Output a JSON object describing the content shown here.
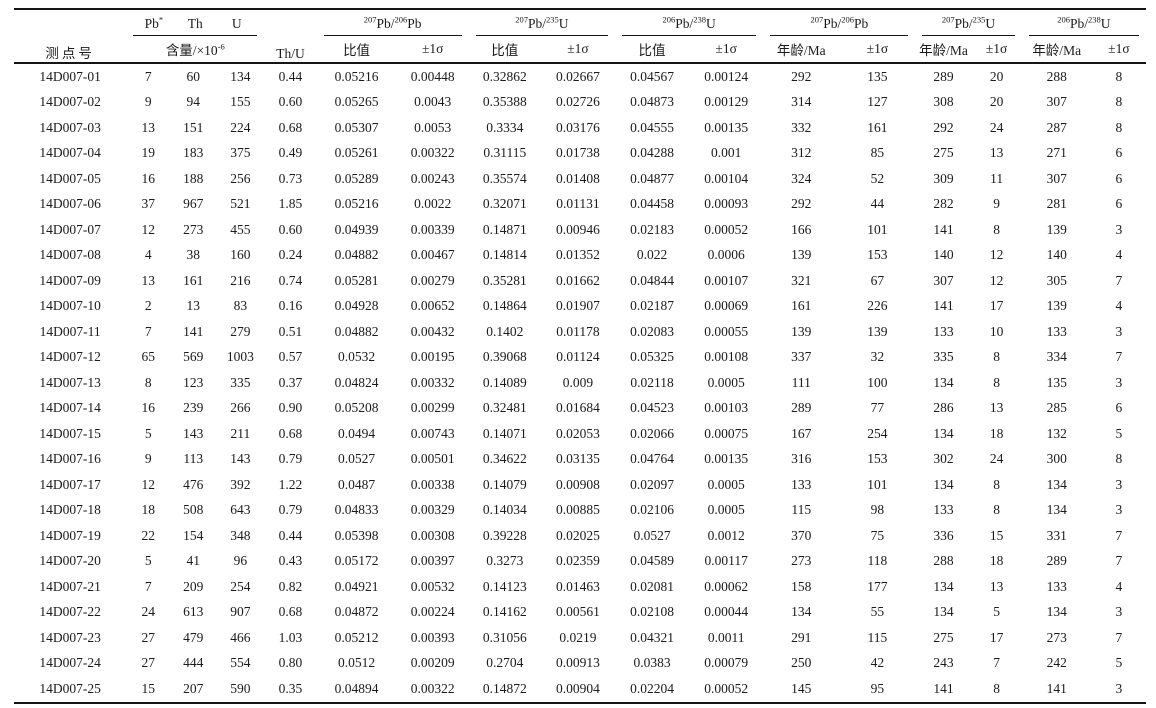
{
  "header": {
    "spot": "测点号",
    "th_u": "Th/U",
    "content": {
      "cols": [
        {
          "base": "Pb",
          "sup": "*"
        },
        {
          "base": "Th"
        },
        {
          "base": "U"
        }
      ],
      "sub": {
        "base": "含量/×10",
        "sup": "-6"
      }
    },
    "groups": [
      {
        "sup1": "207",
        "base1": "Pb/",
        "sup2": "206",
        "base2": "Pb",
        "sub1": "比值",
        "sub2": "±1σ"
      },
      {
        "sup1": "207",
        "base1": "Pb/",
        "sup2": "235",
        "base2": "U",
        "sub1": "比值",
        "sub2": "±1σ"
      },
      {
        "sup1": "206",
        "base1": "Pb/",
        "sup2": "238",
        "base2": "U",
        "sub1": "比值",
        "sub2": "±1σ"
      },
      {
        "sup1": "207",
        "base1": "Pb/",
        "sup2": "206",
        "base2": "Pb",
        "sub1": "年龄/Ma",
        "sub2": "±1σ"
      },
      {
        "sup1": "207",
        "base1": "Pb/",
        "sup2": "235",
        "base2": "U",
        "sub1": "年龄/Ma",
        "sub2": "±1σ"
      },
      {
        "sup1": "206",
        "base1": "Pb/",
        "sup2": "238",
        "base2": "U",
        "sub1": "年龄/Ma",
        "sub2": "±1σ"
      }
    ]
  },
  "rows": [
    [
      "14D007-01",
      "7",
      "60",
      "134",
      "0.44",
      "0.05216",
      "0.00448",
      "0.32862",
      "0.02667",
      "0.04567",
      "0.00124",
      "292",
      "135",
      "289",
      "20",
      "288",
      "8"
    ],
    [
      "14D007-02",
      "9",
      "94",
      "155",
      "0.60",
      "0.05265",
      "0.0043",
      "0.35388",
      "0.02726",
      "0.04873",
      "0.00129",
      "314",
      "127",
      "308",
      "20",
      "307",
      "8"
    ],
    [
      "14D007-03",
      "13",
      "151",
      "224",
      "0.68",
      "0.05307",
      "0.0053",
      "0.3334",
      "0.03176",
      "0.04555",
      "0.00135",
      "332",
      "161",
      "292",
      "24",
      "287",
      "8"
    ],
    [
      "14D007-04",
      "19",
      "183",
      "375",
      "0.49",
      "0.05261",
      "0.00322",
      "0.31115",
      "0.01738",
      "0.04288",
      "0.001",
      "312",
      "85",
      "275",
      "13",
      "271",
      "6"
    ],
    [
      "14D007-05",
      "16",
      "188",
      "256",
      "0.73",
      "0.05289",
      "0.00243",
      "0.35574",
      "0.01408",
      "0.04877",
      "0.00104",
      "324",
      "52",
      "309",
      "11",
      "307",
      "6"
    ],
    [
      "14D007-06",
      "37",
      "967",
      "521",
      "1.85",
      "0.05216",
      "0.0022",
      "0.32071",
      "0.01131",
      "0.04458",
      "0.00093",
      "292",
      "44",
      "282",
      "9",
      "281",
      "6"
    ],
    [
      "14D007-07",
      "12",
      "273",
      "455",
      "0.60",
      "0.04939",
      "0.00339",
      "0.14871",
      "0.00946",
      "0.02183",
      "0.00052",
      "166",
      "101",
      "141",
      "8",
      "139",
      "3"
    ],
    [
      "14D007-08",
      "4",
      "38",
      "160",
      "0.24",
      "0.04882",
      "0.00467",
      "0.14814",
      "0.01352",
      "0.022",
      "0.0006",
      "139",
      "153",
      "140",
      "12",
      "140",
      "4"
    ],
    [
      "14D007-09",
      "13",
      "161",
      "216",
      "0.74",
      "0.05281",
      "0.00279",
      "0.35281",
      "0.01662",
      "0.04844",
      "0.00107",
      "321",
      "67",
      "307",
      "12",
      "305",
      "7"
    ],
    [
      "14D007-10",
      "2",
      "13",
      "83",
      "0.16",
      "0.04928",
      "0.00652",
      "0.14864",
      "0.01907",
      "0.02187",
      "0.00069",
      "161",
      "226",
      "141",
      "17",
      "139",
      "4"
    ],
    [
      "14D007-11",
      "7",
      "141",
      "279",
      "0.51",
      "0.04882",
      "0.00432",
      "0.1402",
      "0.01178",
      "0.02083",
      "0.00055",
      "139",
      "139",
      "133",
      "10",
      "133",
      "3"
    ],
    [
      "14D007-12",
      "65",
      "569",
      "1003",
      "0.57",
      "0.0532",
      "0.00195",
      "0.39068",
      "0.01124",
      "0.05325",
      "0.00108",
      "337",
      "32",
      "335",
      "8",
      "334",
      "7"
    ],
    [
      "14D007-13",
      "8",
      "123",
      "335",
      "0.37",
      "0.04824",
      "0.00332",
      "0.14089",
      "0.009",
      "0.02118",
      "0.0005",
      "111",
      "100",
      "134",
      "8",
      "135",
      "3"
    ],
    [
      "14D007-14",
      "16",
      "239",
      "266",
      "0.90",
      "0.05208",
      "0.00299",
      "0.32481",
      "0.01684",
      "0.04523",
      "0.00103",
      "289",
      "77",
      "286",
      "13",
      "285",
      "6"
    ],
    [
      "14D007-15",
      "5",
      "143",
      "211",
      "0.68",
      "0.0494",
      "0.00743",
      "0.14071",
      "0.02053",
      "0.02066",
      "0.00075",
      "167",
      "254",
      "134",
      "18",
      "132",
      "5"
    ],
    [
      "14D007-16",
      "9",
      "113",
      "143",
      "0.79",
      "0.0527",
      "0.00501",
      "0.34622",
      "0.03135",
      "0.04764",
      "0.00135",
      "316",
      "153",
      "302",
      "24",
      "300",
      "8"
    ],
    [
      "14D007-17",
      "12",
      "476",
      "392",
      "1.22",
      "0.0487",
      "0.00338",
      "0.14079",
      "0.00908",
      "0.02097",
      "0.0005",
      "133",
      "101",
      "134",
      "8",
      "134",
      "3"
    ],
    [
      "14D007-18",
      "18",
      "508",
      "643",
      "0.79",
      "0.04833",
      "0.00329",
      "0.14034",
      "0.00885",
      "0.02106",
      "0.0005",
      "115",
      "98",
      "133",
      "8",
      "134",
      "3"
    ],
    [
      "14D007-19",
      "22",
      "154",
      "348",
      "0.44",
      "0.05398",
      "0.00308",
      "0.39228",
      "0.02025",
      "0.0527",
      "0.0012",
      "370",
      "75",
      "336",
      "15",
      "331",
      "7"
    ],
    [
      "14D007-20",
      "5",
      "41",
      "96",
      "0.43",
      "0.05172",
      "0.00397",
      "0.3273",
      "0.02359",
      "0.04589",
      "0.00117",
      "273",
      "118",
      "288",
      "18",
      "289",
      "7"
    ],
    [
      "14D007-21",
      "7",
      "209",
      "254",
      "0.82",
      "0.04921",
      "0.00532",
      "0.14123",
      "0.01463",
      "0.02081",
      "0.00062",
      "158",
      "177",
      "134",
      "13",
      "133",
      "4"
    ],
    [
      "14D007-22",
      "24",
      "613",
      "907",
      "0.68",
      "0.04872",
      "0.00224",
      "0.14162",
      "0.00561",
      "0.02108",
      "0.00044",
      "134",
      "55",
      "134",
      "5",
      "134",
      "3"
    ],
    [
      "14D007-23",
      "27",
      "479",
      "466",
      "1.03",
      "0.05212",
      "0.00393",
      "0.31056",
      "0.0219",
      "0.04321",
      "0.0011",
      "291",
      "115",
      "275",
      "17",
      "273",
      "7"
    ],
    [
      "14D007-24",
      "27",
      "444",
      "554",
      "0.80",
      "0.0512",
      "0.00209",
      "0.2704",
      "0.00913",
      "0.0383",
      "0.00079",
      "250",
      "42",
      "243",
      "7",
      "242",
      "5"
    ],
    [
      "14D007-25",
      "15",
      "207",
      "590",
      "0.35",
      "0.04894",
      "0.00322",
      "0.14872",
      "0.00904",
      "0.02204",
      "0.00052",
      "145",
      "95",
      "141",
      "8",
      "141",
      "3"
    ]
  ]
}
